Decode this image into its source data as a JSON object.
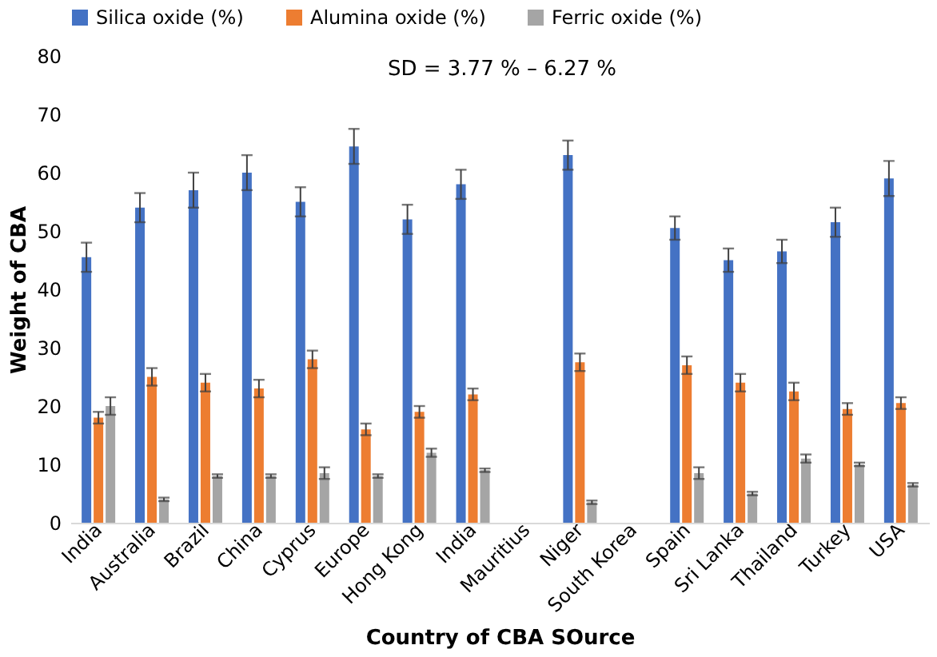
{
  "chart_data": {
    "type": "bar",
    "xlabel": "Country of CBA SOurce",
    "ylabel": "Weight of CBA",
    "categories": [
      "India",
      "Australia",
      "Brazil",
      "China",
      "Cyprus",
      "Europe",
      "Hong Kong",
      "India",
      "Mauritius",
      "Niger",
      "South Korea",
      "Spain",
      "Sri Lanka",
      "Thailand",
      "Turkey",
      "USA"
    ],
    "series": [
      {
        "name": "Silica oxide (%)",
        "color": "#4472c4",
        "values": [
          45.5,
          54,
          57,
          60,
          55,
          64.5,
          52,
          58,
          null,
          63,
          null,
          50.5,
          45,
          46.5,
          51.5,
          59
        ],
        "errors": [
          2.5,
          2.5,
          3,
          3,
          2.5,
          3,
          2.5,
          2.5,
          null,
          2.5,
          null,
          2,
          2,
          2,
          2.5,
          3
        ]
      },
      {
        "name": "Alumina oxide (%)",
        "color": "#ed7d31",
        "values": [
          18,
          25,
          24,
          23,
          28,
          16,
          19,
          22,
          null,
          27.5,
          null,
          27,
          24,
          22.5,
          19.5,
          20.5
        ],
        "errors": [
          1,
          1.5,
          1.5,
          1.5,
          1.5,
          1,
          1,
          1,
          null,
          1.5,
          null,
          1.5,
          1.5,
          1.5,
          1,
          1
        ]
      },
      {
        "name": "Ferric oxide (%)",
        "color": "#a5a5a5",
        "values": [
          20,
          4,
          8,
          8,
          8.5,
          8,
          12,
          9,
          null,
          3.5,
          null,
          8.5,
          5,
          11,
          10,
          6.5
        ],
        "errors": [
          1.5,
          0.3,
          0.3,
          0.3,
          1,
          0.3,
          0.7,
          0.3,
          null,
          0.3,
          null,
          1,
          0.3,
          0.7,
          0.3,
          0.3
        ]
      }
    ],
    "ylim": [
      0,
      80
    ],
    "yticks": [
      0,
      10,
      20,
      30,
      40,
      50,
      60,
      70,
      80
    ],
    "annotations": [
      "SD = 3.77 % – 6.27 %"
    ],
    "legend": "top",
    "grid": false
  }
}
